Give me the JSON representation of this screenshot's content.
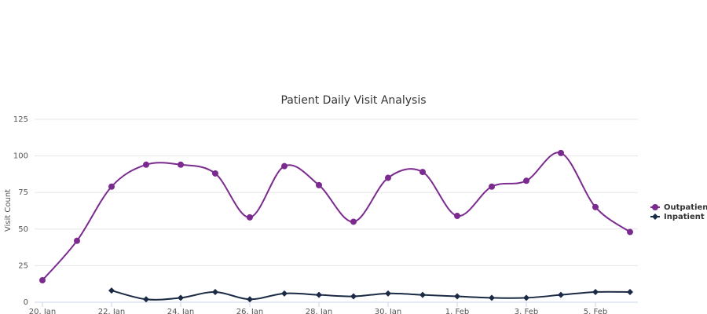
{
  "chart_data": {
    "type": "line",
    "title": "Patient Daily Visit Analysis",
    "y_label": "Visit Count",
    "categories": [
      "20. Jan",
      null,
      "22. Jan",
      null,
      "24. Jan",
      null,
      "26. Jan",
      null,
      "28. Jan",
      null,
      "30. Jan",
      null,
      "1. Feb",
      null,
      "3. Feb",
      null,
      "5. Feb",
      null
    ],
    "series": [
      {
        "name": "Outpatient",
        "color": "#7b2a8f",
        "marker": "circle",
        "values": [
          15,
          42,
          79,
          94,
          94,
          88,
          58,
          93,
          80,
          55,
          85,
          89,
          59,
          79,
          83,
          102,
          65,
          48
        ]
      },
      {
        "name": "Inpatient",
        "color": "#1c2b45",
        "marker": "diamond",
        "values": [
          null,
          null,
          8,
          2,
          3,
          7,
          2,
          6,
          5,
          4,
          6,
          5,
          4,
          3,
          3,
          5,
          7,
          7
        ]
      }
    ],
    "ylim": [
      0,
      125
    ],
    "yticks": [
      0,
      25,
      50,
      75,
      100,
      125
    ],
    "grid": true,
    "legend": "right"
  }
}
